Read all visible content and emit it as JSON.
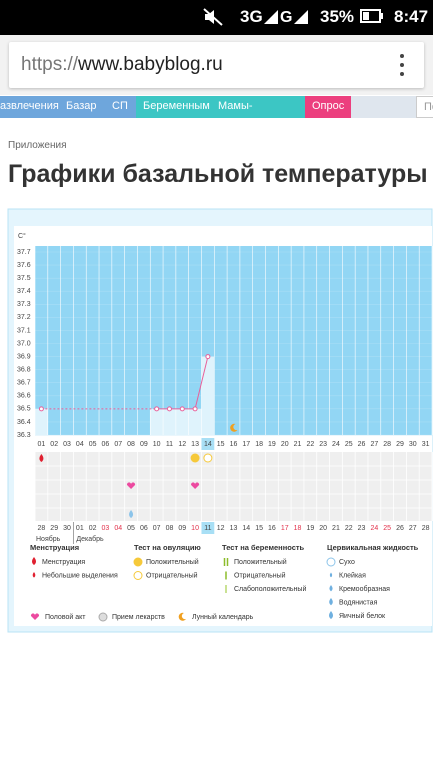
{
  "status_bar": {
    "network": "3G",
    "battery": "35%",
    "time": "8:47"
  },
  "browser": {
    "scheme": "https://",
    "host": "www.babyblog.ru"
  },
  "nav": {
    "items": [
      "азвлечения",
      "Базар",
      "СП",
      "Беременным",
      "Мамы-Эксперты",
      "Опрос"
    ],
    "search": "По"
  },
  "breadcrumb": "Приложения",
  "page_title": "Графики базальной температуры",
  "chart_data": {
    "type": "line",
    "y_unit": "C°",
    "categories": [
      "01",
      "02",
      "03",
      "04",
      "05",
      "06",
      "07",
      "08",
      "09",
      "10",
      "11",
      "12",
      "13",
      "14",
      "15",
      "16",
      "17",
      "18",
      "19",
      "20",
      "21",
      "22",
      "23",
      "24",
      "25",
      "26",
      "27",
      "28",
      "29",
      "30",
      "31"
    ],
    "series": [
      {
        "color": "#e8609a",
        "values": [
          36.5,
          null,
          null,
          null,
          null,
          null,
          null,
          null,
          null,
          36.5,
          36.5,
          36.5,
          36.5,
          36.9,
          null,
          null,
          null,
          null,
          null,
          null,
          null,
          null,
          null,
          null,
          null,
          null,
          null,
          null,
          null,
          null,
          null
        ]
      }
    ],
    "ylim": [
      36.3,
      37.7
    ],
    "yticks": [
      36.3,
      36.4,
      36.5,
      36.6,
      36.7,
      36.8,
      36.9,
      {
        "value": 37,
        "label": "37.0"
      },
      37.1,
      37.2,
      37.3,
      37.4,
      37.5,
      37.6,
      37.7
    ],
    "grid": true,
    "cycle_dates": [
      "28",
      "29",
      "30",
      "01",
      "02",
      "03",
      "04",
      "05",
      "06",
      "07",
      "08",
      "09",
      "10",
      "11",
      "12",
      "13",
      "14",
      "15",
      "16",
      "17",
      "18",
      "19",
      "20",
      "21",
      "22",
      "23",
      "24",
      "25",
      "26",
      "27",
      "28"
    ],
    "months": [
      "Ноябрь",
      "Декабрь"
    ]
  },
  "legend": {
    "groups": [
      {
        "title": "Менструация",
        "items": [
          "Менструация",
          "Небольшие выделения"
        ]
      },
      {
        "title": "Тест на овуляцию",
        "items": [
          "Положительный",
          "Отрицательный"
        ]
      },
      {
        "title": "Тест на беременность",
        "items": [
          "Положительный",
          "Отрицательный",
          "Слабоположительный"
        ]
      },
      {
        "title": "Цервикальная жидкость",
        "items": [
          "Сухо",
          "Клейкая",
          "Кремообразная",
          "Водянистая",
          "Яичный белок"
        ]
      }
    ],
    "other": [
      "Половой акт",
      "Прием лекарств",
      "Лунный календарь"
    ]
  }
}
